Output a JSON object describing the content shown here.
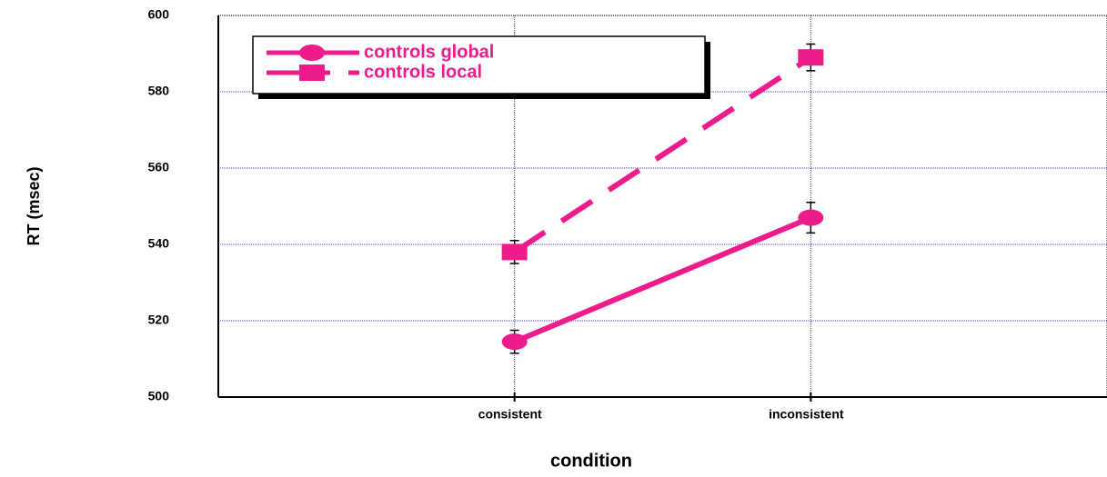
{
  "chart_data": {
    "type": "line",
    "x_label": "condition",
    "y_label": "RT (msec)",
    "categories": [
      "consistent",
      "inconsistent"
    ],
    "series": [
      {
        "name": "controls global",
        "color": "#ec1c8c",
        "marker": "circle",
        "dash": "solid",
        "values": [
          514.5,
          547
        ],
        "errors": [
          3,
          4
        ]
      },
      {
        "name": "controls local",
        "color": "#ec1c8c",
        "marker": "square",
        "dash": "dashed",
        "values": [
          538,
          589
        ],
        "errors": [
          3,
          3.5
        ]
      }
    ],
    "ylim": [
      500,
      600
    ],
    "yticks": [
      500,
      520,
      540,
      560,
      580,
      600
    ],
    "grid": true,
    "legend": "upper left"
  }
}
